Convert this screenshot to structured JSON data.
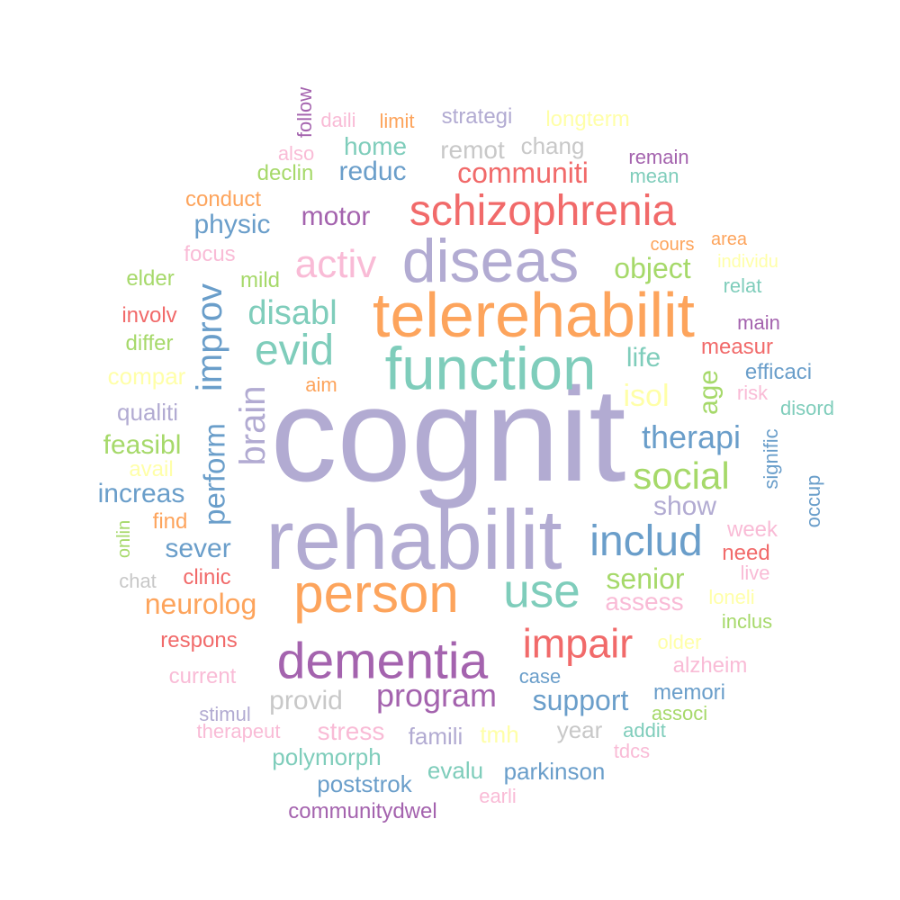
{
  "palette": {
    "purple": "#B2ABD2",
    "orange": "#FDA45C",
    "teal": "#7FCDBB",
    "red": "#F16A6A",
    "blue": "#6A9ECA",
    "violet": "#A463AE",
    "green": "#A6D96A",
    "pink": "#F9BBD6",
    "yellow": "#FFFFA8",
    "gray": "#C8C8C8"
  },
  "words": [
    {
      "text": "cognit",
      "color": "purple"
    },
    {
      "text": "rehabilit",
      "color": "purple"
    },
    {
      "text": "telerehabilit",
      "color": "orange"
    },
    {
      "text": "function",
      "color": "teal"
    },
    {
      "text": "diseas",
      "color": "purple"
    },
    {
      "text": "person",
      "color": "orange"
    },
    {
      "text": "dementia",
      "color": "violet"
    },
    {
      "text": "schizophrenia",
      "color": "red"
    },
    {
      "text": "use",
      "color": "teal"
    },
    {
      "text": "includ",
      "color": "blue"
    },
    {
      "text": "impair",
      "color": "red"
    },
    {
      "text": "evid",
      "color": "teal"
    },
    {
      "text": "social",
      "color": "green"
    },
    {
      "text": "activ",
      "color": "pink"
    },
    {
      "text": "improv",
      "color": "blue"
    },
    {
      "text": "brain",
      "color": "purple"
    },
    {
      "text": "disabl",
      "color": "teal"
    },
    {
      "text": "program",
      "color": "violet"
    },
    {
      "text": "communiti",
      "color": "red"
    },
    {
      "text": "therapi",
      "color": "blue"
    },
    {
      "text": "support",
      "color": "blue"
    },
    {
      "text": "perform",
      "color": "blue"
    },
    {
      "text": "senior",
      "color": "green"
    },
    {
      "text": "object",
      "color": "green"
    },
    {
      "text": "neurolog",
      "color": "orange"
    },
    {
      "text": "isol",
      "color": "yellow"
    },
    {
      "text": "age",
      "color": "green"
    },
    {
      "text": "motor",
      "color": "violet"
    },
    {
      "text": "physic",
      "color": "blue"
    },
    {
      "text": "reduc",
      "color": "blue"
    },
    {
      "text": "provid",
      "color": "gray"
    },
    {
      "text": "sever",
      "color": "blue"
    },
    {
      "text": "show",
      "color": "purple"
    },
    {
      "text": "life",
      "color": "teal"
    },
    {
      "text": "increas",
      "color": "blue"
    },
    {
      "text": "feasibl",
      "color": "green"
    },
    {
      "text": "assess",
      "color": "pink"
    },
    {
      "text": "stress",
      "color": "pink"
    },
    {
      "text": "famili",
      "color": "purple"
    },
    {
      "text": "parkinson",
      "color": "blue"
    },
    {
      "text": "polymorph",
      "color": "teal"
    },
    {
      "text": "poststrok",
      "color": "blue"
    },
    {
      "text": "evalu",
      "color": "teal"
    },
    {
      "text": "communitydwel",
      "color": "violet"
    },
    {
      "text": "home",
      "color": "teal"
    },
    {
      "text": "remot",
      "color": "gray"
    },
    {
      "text": "chang",
      "color": "gray"
    },
    {
      "text": "strategi",
      "color": "purple"
    },
    {
      "text": "longterm",
      "color": "yellow"
    },
    {
      "text": "declin",
      "color": "green"
    },
    {
      "text": "measur",
      "color": "red"
    },
    {
      "text": "efficaci",
      "color": "blue"
    },
    {
      "text": "mild",
      "color": "green"
    },
    {
      "text": "focus",
      "color": "pink"
    },
    {
      "text": "conduct",
      "color": "orange"
    },
    {
      "text": "elder",
      "color": "green"
    },
    {
      "text": "involv",
      "color": "red"
    },
    {
      "text": "differ",
      "color": "green"
    },
    {
      "text": "compar",
      "color": "yellow"
    },
    {
      "text": "qualiti",
      "color": "purple"
    },
    {
      "text": "avail",
      "color": "yellow"
    },
    {
      "text": "find",
      "color": "orange"
    },
    {
      "text": "onlin",
      "color": "green"
    },
    {
      "text": "chat",
      "color": "gray"
    },
    {
      "text": "clinic",
      "color": "red"
    },
    {
      "text": "respons",
      "color": "red"
    },
    {
      "text": "current",
      "color": "pink"
    },
    {
      "text": "stimul",
      "color": "purple"
    },
    {
      "text": "therapeut",
      "color": "pink"
    },
    {
      "text": "aim",
      "color": "orange"
    },
    {
      "text": "daili",
      "color": "pink"
    },
    {
      "text": "limit",
      "color": "orange"
    },
    {
      "text": "also",
      "color": "pink"
    },
    {
      "text": "follow",
      "color": "violet"
    },
    {
      "text": "remain",
      "color": "violet"
    },
    {
      "text": "mean",
      "color": "teal"
    },
    {
      "text": "cours",
      "color": "orange"
    },
    {
      "text": "area",
      "color": "orange"
    },
    {
      "text": "individu",
      "color": "yellow"
    },
    {
      "text": "relat",
      "color": "teal"
    },
    {
      "text": "main",
      "color": "violet"
    },
    {
      "text": "risk",
      "color": "pink"
    },
    {
      "text": "disord",
      "color": "teal"
    },
    {
      "text": "signific",
      "color": "blue"
    },
    {
      "text": "occup",
      "color": "blue"
    },
    {
      "text": "week",
      "color": "pink"
    },
    {
      "text": "need",
      "color": "red"
    },
    {
      "text": "live",
      "color": "pink"
    },
    {
      "text": "loneli",
      "color": "yellow"
    },
    {
      "text": "inclus",
      "color": "green"
    },
    {
      "text": "older",
      "color": "yellow"
    },
    {
      "text": "alzheim",
      "color": "pink"
    },
    {
      "text": "case",
      "color": "blue"
    },
    {
      "text": "memori",
      "color": "blue"
    },
    {
      "text": "addit",
      "color": "teal"
    },
    {
      "text": "associ",
      "color": "green"
    },
    {
      "text": "year",
      "color": "gray"
    },
    {
      "text": "tdcs",
      "color": "pink"
    },
    {
      "text": "tmh",
      "color": "yellow"
    },
    {
      "text": "earli",
      "color": "pink"
    }
  ]
}
